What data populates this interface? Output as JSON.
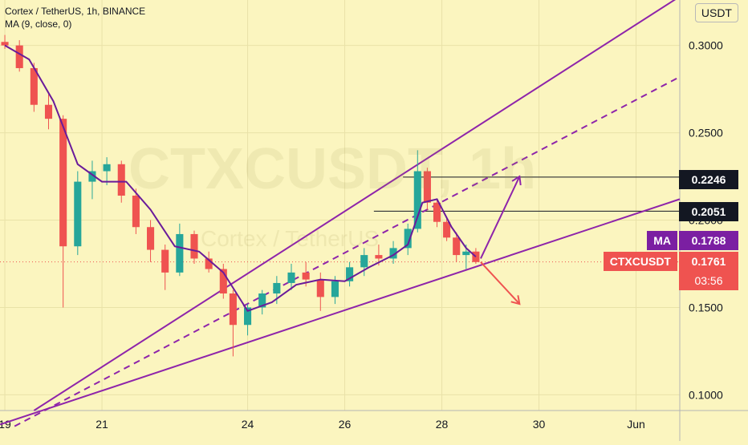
{
  "legend": {
    "symbol_line": "Cortex / TetherUS, 1h, BINANCE",
    "indicator_line": "MA (9, close, 0)"
  },
  "watermark": {
    "main": "CTXCUSDT, 1h",
    "sub": "Cortex / TetherUS"
  },
  "currency": "USDT",
  "colors": {
    "background": "#fbf5bf",
    "up": "#26a69a",
    "down": "#ef5350",
    "ma": "#6a1b9a",
    "trendline": "#8e24aa",
    "projection_down": "#ef5350",
    "level_tag": "#131722",
    "ma_tag": "#7b1fa2",
    "price_tag": "#ef5350"
  },
  "price_tags": {
    "level_high": "0.2246",
    "level_low": "0.2051",
    "ma_label": "MA",
    "ma_value": "0.1788",
    "symbol_label": "CTXCUSDT",
    "symbol_value": "0.1761",
    "countdown": "03:56"
  },
  "chart_data": {
    "type": "candlestick",
    "title": "Cortex / TetherUS, 1h, BINANCE",
    "y_axis": {
      "ticks": [
        0.1,
        0.15,
        0.2,
        0.25,
        0.3
      ],
      "tick_labels": [
        "0.1000",
        "0.1500",
        "0.2000",
        "0.2500",
        "0.3000"
      ],
      "range": [
        0.091,
        0.326
      ],
      "unit": "USDT"
    },
    "x_axis": {
      "ticks": [
        19,
        21,
        24,
        26,
        28,
        30,
        32
      ],
      "tick_labels": [
        "19",
        "21",
        "24",
        "26",
        "28",
        "30",
        "Jun"
      ],
      "range": [
        18.9,
        32.9
      ],
      "unit": "day of May"
    },
    "ohlc": [
      [
        19.0,
        0.302,
        0.306,
        0.298,
        0.3
      ],
      [
        19.3,
        0.3,
        0.303,
        0.285,
        0.287
      ],
      [
        19.6,
        0.287,
        0.29,
        0.262,
        0.266
      ],
      [
        19.9,
        0.266,
        0.272,
        0.252,
        0.258
      ],
      [
        20.2,
        0.258,
        0.26,
        0.15,
        0.185
      ],
      [
        20.5,
        0.185,
        0.228,
        0.18,
        0.222
      ],
      [
        20.8,
        0.222,
        0.234,
        0.212,
        0.228
      ],
      [
        21.1,
        0.228,
        0.236,
        0.22,
        0.232
      ],
      [
        21.4,
        0.232,
        0.234,
        0.21,
        0.214
      ],
      [
        21.7,
        0.214,
        0.218,
        0.192,
        0.196
      ],
      [
        22.0,
        0.196,
        0.2,
        0.176,
        0.183
      ],
      [
        22.3,
        0.183,
        0.186,
        0.16,
        0.17
      ],
      [
        22.6,
        0.17,
        0.198,
        0.168,
        0.192
      ],
      [
        22.9,
        0.192,
        0.194,
        0.175,
        0.178
      ],
      [
        23.2,
        0.178,
        0.182,
        0.17,
        0.172
      ],
      [
        23.5,
        0.172,
        0.175,
        0.155,
        0.158
      ],
      [
        23.7,
        0.158,
        0.16,
        0.122,
        0.14
      ],
      [
        24.0,
        0.14,
        0.152,
        0.134,
        0.15
      ],
      [
        24.3,
        0.15,
        0.16,
        0.146,
        0.158
      ],
      [
        24.6,
        0.158,
        0.168,
        0.152,
        0.164
      ],
      [
        24.9,
        0.164,
        0.175,
        0.16,
        0.17
      ],
      [
        25.2,
        0.17,
        0.176,
        0.162,
        0.166
      ],
      [
        25.5,
        0.166,
        0.17,
        0.148,
        0.156
      ],
      [
        25.8,
        0.156,
        0.168,
        0.152,
        0.165
      ],
      [
        26.1,
        0.165,
        0.176,
        0.162,
        0.173
      ],
      [
        26.4,
        0.173,
        0.184,
        0.168,
        0.18
      ],
      [
        26.7,
        0.18,
        0.186,
        0.174,
        0.178
      ],
      [
        27.0,
        0.178,
        0.188,
        0.175,
        0.184
      ],
      [
        27.3,
        0.184,
        0.198,
        0.18,
        0.195
      ],
      [
        27.5,
        0.195,
        0.24,
        0.193,
        0.228
      ],
      [
        27.7,
        0.228,
        0.23,
        0.206,
        0.21
      ],
      [
        27.9,
        0.21,
        0.212,
        0.196,
        0.199
      ],
      [
        28.1,
        0.199,
        0.201,
        0.188,
        0.19
      ],
      [
        28.3,
        0.19,
        0.193,
        0.176,
        0.18
      ],
      [
        28.5,
        0.18,
        0.186,
        0.172,
        0.182
      ],
      [
        28.7,
        0.182,
        0.184,
        0.175,
        0.176
      ]
    ],
    "ma": {
      "name": "MA",
      "x": [
        19.0,
        19.5,
        20.0,
        20.5,
        21.0,
        21.5,
        22.0,
        22.5,
        23.0,
        23.5,
        24.0,
        24.5,
        25.0,
        25.5,
        26.0,
        26.5,
        27.0,
        27.3,
        27.6,
        27.9,
        28.2,
        28.5,
        28.7
      ],
      "y": [
        0.3,
        0.292,
        0.268,
        0.232,
        0.222,
        0.222,
        0.206,
        0.185,
        0.182,
        0.17,
        0.148,
        0.153,
        0.163,
        0.166,
        0.165,
        0.173,
        0.18,
        0.186,
        0.21,
        0.212,
        0.196,
        0.184,
        0.179
      ]
    },
    "trendlines": [
      {
        "style": "solid",
        "from": [
          19.6,
          0.091
        ],
        "to": [
          32.9,
          0.328
        ]
      },
      {
        "style": "dashed",
        "from": [
          19.2,
          0.082
        ],
        "to": [
          32.9,
          0.282
        ]
      },
      {
        "style": "solid",
        "from": [
          18.9,
          0.083
        ],
        "to": [
          32.9,
          0.212
        ]
      }
    ],
    "horizontal_levels": [
      {
        "price": 0.2246,
        "from_x": 27.2
      },
      {
        "price": 0.2051,
        "from_x": 26.6
      }
    ],
    "projections": [
      {
        "direction": "up",
        "from": [
          28.8,
          0.178
        ],
        "to": [
          29.6,
          0.225
        ]
      },
      {
        "direction": "down",
        "from": [
          28.8,
          0.176
        ],
        "to": [
          29.6,
          0.152
        ]
      }
    ],
    "last_price": 0.1761,
    "ma_value": 0.1788
  }
}
